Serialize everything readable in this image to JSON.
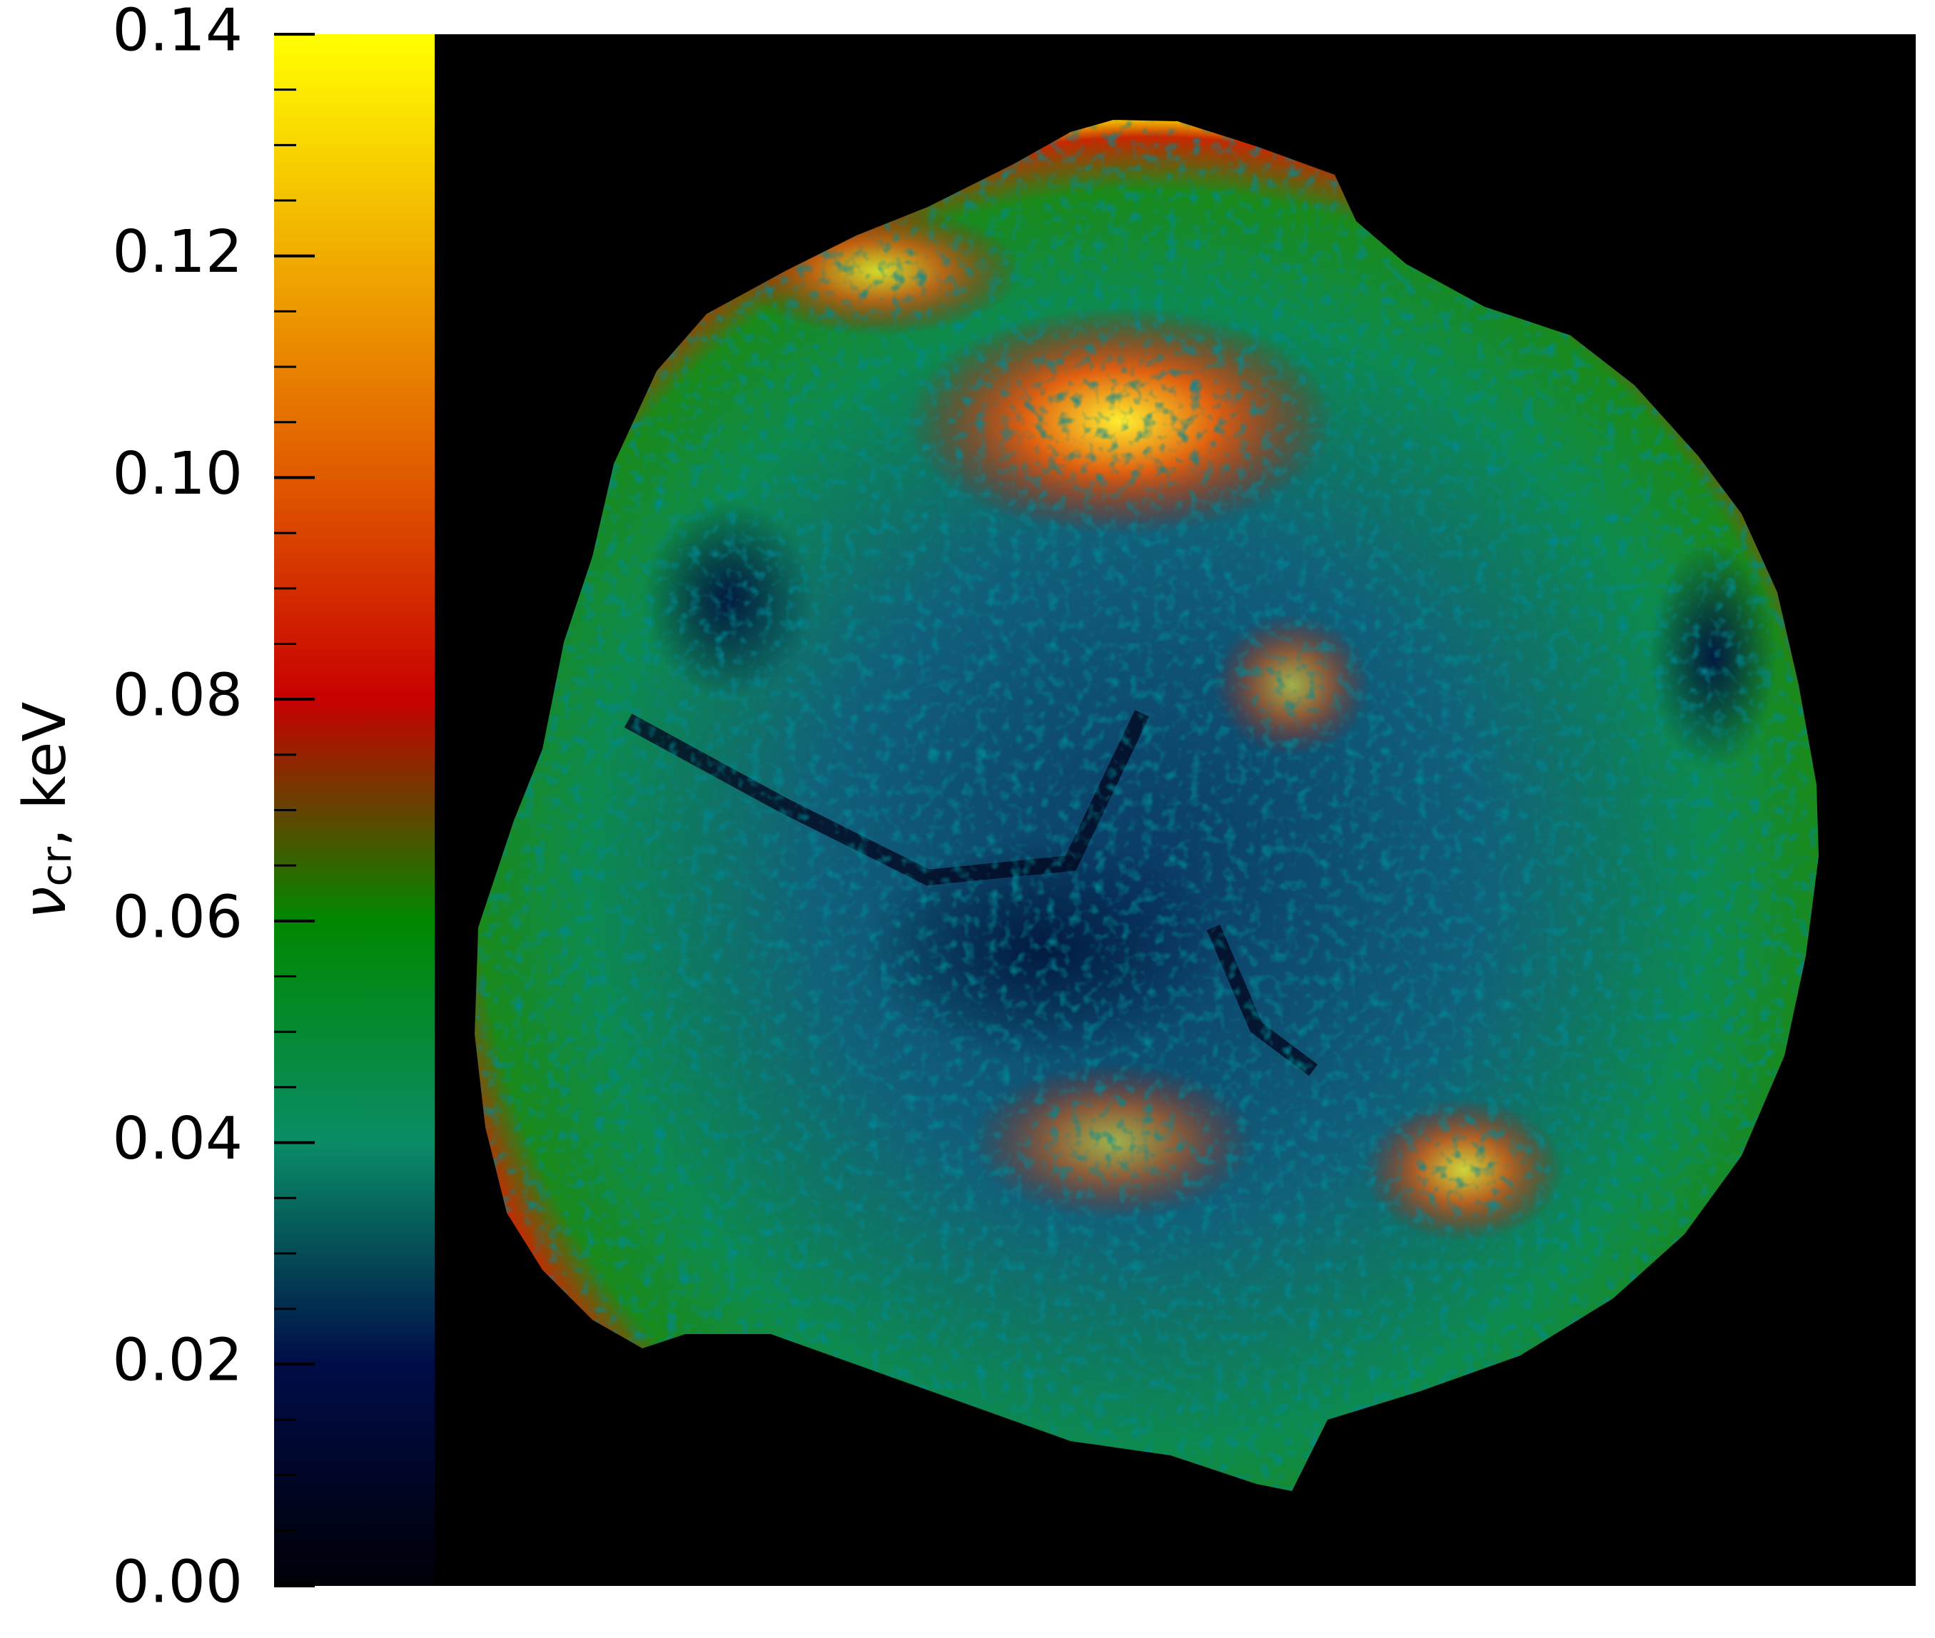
{
  "chart_data": {
    "type": "colormap-image",
    "colorbar": {
      "label": {
        "symbol": "ν",
        "subscript": "cr",
        "rest": ", keV"
      },
      "ylim": [
        0,
        0.14
      ],
      "yticks": [
        {
          "value": 0,
          "label": "0.00"
        },
        0.02,
        0.04,
        0.06,
        0.08,
        {
          "value": 0.1,
          "label": "0.10"
        },
        0.12,
        0.14
      ],
      "minor_yticks": [
        0.005,
        0.01,
        0.015,
        0.025,
        0.03,
        0.035,
        0.045,
        0.05,
        0.055,
        0.065,
        0.07,
        0.075,
        0.085,
        0.09,
        0.095,
        0.105,
        0.11,
        0.115,
        0.125,
        0.13,
        0.135
      ],
      "colormap": [
        "#000006",
        "#000c48",
        "#0a8c66",
        "#008800",
        "#c80000",
        "#e05a00",
        "#f0ac00",
        "#ffff00"
      ]
    }
  }
}
